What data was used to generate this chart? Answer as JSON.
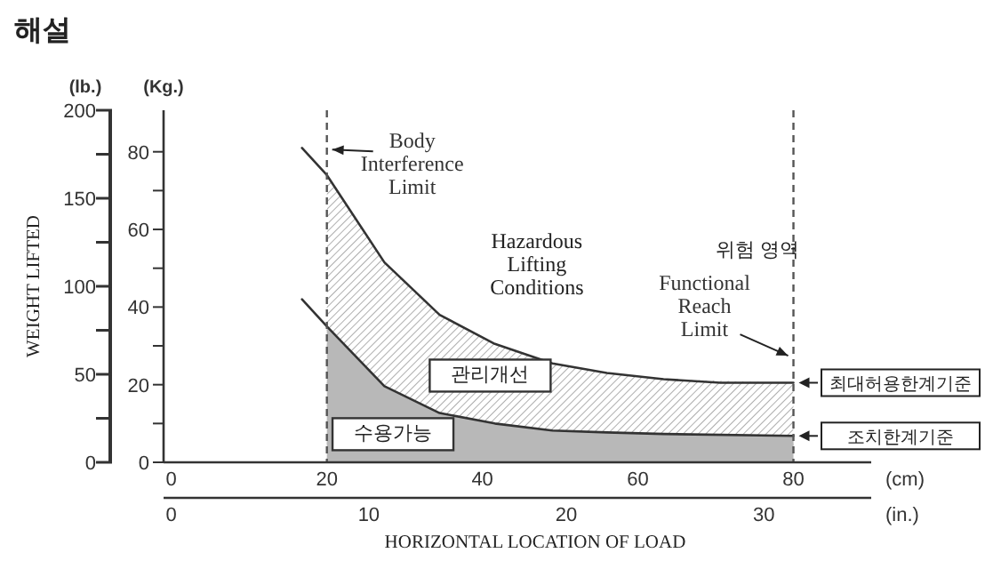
{
  "chart_data": {
    "type": "line",
    "title": "해설",
    "ylabel": "(Kg.)",
    "y2label": "(lb.)",
    "xlabel": "(cm)",
    "x2label": "(in.)",
    "xlim": [
      -1,
      90
    ],
    "xticks": [
      0,
      20,
      40,
      60,
      80
    ],
    "x2lim": [
      -0.39,
      35.43
    ],
    "x2ticks": [
      0,
      10,
      20,
      30
    ],
    "ylim": [
      0,
      90.7
    ],
    "yticks": [
      0,
      {
        "value": 10,
        "label": null
      },
      20,
      {
        "value": 30,
        "label": null
      },
      40,
      {
        "value": 50,
        "label": null
      },
      60,
      {
        "value": 70,
        "label": null
      },
      80
    ],
    "y2lim": [
      0,
      200
    ],
    "y2ticks": [
      0,
      50,
      100,
      150,
      200
    ],
    "series": [
      {
        "type": "area",
        "color": "#999999",
        "x": [
          20,
          27.4,
          34.5,
          41.6,
          49,
          56,
          63.3,
          80
        ],
        "values": [
          74,
          51.5,
          38,
          30.5,
          25.5,
          23,
          21.4,
          20.5
        ]
      },
      {
        "type": "area",
        "color": "#b8b8b8",
        "x": [
          20,
          27.4,
          34.5,
          41.6,
          49,
          56,
          63.3,
          80
        ],
        "values": [
          35,
          19.6,
          12.7,
          10,
          8.2,
          7.7,
          7.3,
          6.8
        ]
      },
      {
        "name": "최대허용한계기준",
        "color": "#333333",
        "x": [
          16.8,
          20,
          27.4,
          34.5,
          41.6,
          49,
          56,
          63.3,
          70.6,
          80
        ],
        "values": [
          81,
          74,
          51.5,
          38,
          30.5,
          25.5,
          23,
          21.4,
          20.5,
          20.5
        ]
      },
      {
        "name": "조치한계기준",
        "color": "#333333",
        "x": [
          16.8,
          20,
          27.4,
          34.5,
          41.6,
          49,
          56,
          63.3,
          80
        ],
        "values": [
          42,
          35,
          19.6,
          12.7,
          10,
          8.2,
          7.7,
          7.3,
          6.8
        ]
      }
    ],
    "ref_lines": [
      {
        "axis": "x",
        "value": 20,
        "line_style": "dashed",
        "color": "#555555"
      },
      {
        "axis": "x",
        "value": 80,
        "line_style": "dashed",
        "color": "#555555"
      }
    ],
    "annotations": [
      "WEIGHT LIFTED",
      "HORIZONTAL LOCATION OF LOAD",
      {
        "text": "Body\nInterference\nLimit",
        "x": 20,
        "y": 81
      },
      {
        "text": "Functional\nReach\nLimit",
        "x": 80,
        "y": 27
      },
      "Hazardous\nLifting\nConditions",
      "위험 영역",
      "관리개선",
      "수용가능"
    ]
  }
}
